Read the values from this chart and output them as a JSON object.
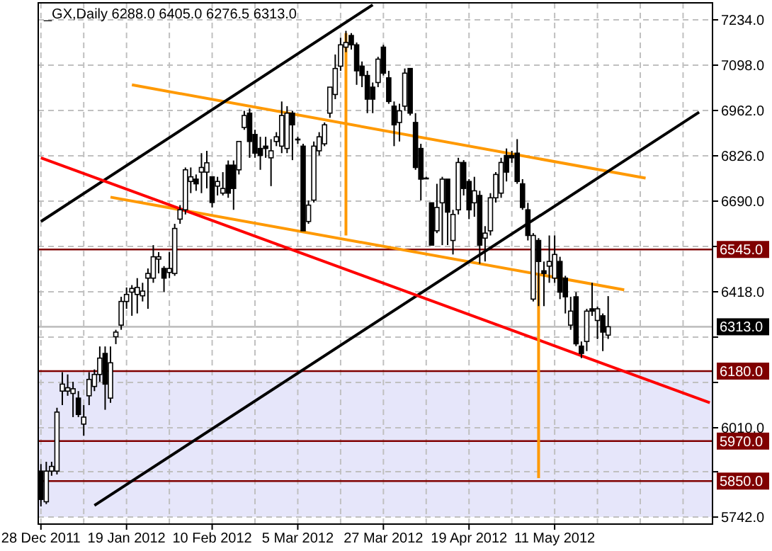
{
  "chart_data": {
    "type": "candlestick",
    "title": "_GX,Daily 6288.0 6405.0 6276.5 6313.0",
    "categories": [
      "28 Dec 2011",
      null,
      null,
      null,
      null,
      null,
      null,
      null,
      null,
      null,
      null,
      null,
      null,
      null,
      null,
      null,
      "19 Jan 2012",
      null,
      null,
      null,
      null,
      null,
      null,
      null,
      null,
      null,
      null,
      null,
      null,
      null,
      null,
      null,
      "10 Feb 2012",
      null,
      null,
      null,
      null,
      null,
      null,
      null,
      null,
      null,
      null,
      null,
      null,
      null,
      null,
      null,
      "5 Mar 2012",
      null,
      null,
      null,
      null,
      null,
      null,
      null,
      null,
      null,
      null,
      null,
      null,
      null,
      null,
      null,
      "27 Mar 2012",
      null,
      null,
      null,
      null,
      null,
      null,
      null,
      null,
      null,
      null,
      null,
      null,
      null,
      null,
      null,
      "19 Apr 2012",
      null,
      null,
      null,
      null,
      null,
      null,
      null,
      null,
      null,
      null,
      null,
      null,
      null,
      null,
      null,
      "11 May 2012",
      null,
      null,
      null,
      null,
      null,
      null,
      null,
      null,
      null,
      null,
      null,
      null,
      null,
      null,
      null,
      null,
      null,
      null,
      null,
      null,
      null,
      null,
      null,
      null,
      null,
      null,
      null,
      null,
      null
    ],
    "ohlc": [
      [
        5880,
        5901,
        5774,
        5795
      ],
      [
        5788,
        5908,
        5781,
        5880
      ],
      [
        5880,
        5908,
        5866,
        5894
      ],
      [
        5880,
        6070,
        5870,
        6057
      ],
      [
        6120,
        6177,
        6078,
        6141
      ],
      [
        6120,
        6170,
        6106,
        6130
      ],
      [
        6113,
        6148,
        6042,
        6127
      ],
      [
        6099,
        6120,
        6042,
        6050
      ],
      [
        6021,
        6078,
        5986,
        6042
      ],
      [
        6106,
        6177,
        6078,
        6155
      ],
      [
        6134,
        6185,
        6120,
        6170
      ],
      [
        6170,
        6254,
        6148,
        6219
      ],
      [
        6233,
        6254,
        6064,
        6141
      ],
      [
        6099,
        6254,
        6085,
        6205
      ],
      [
        6283,
        6304,
        6261,
        6297
      ],
      [
        6318,
        6403,
        6304,
        6389
      ],
      [
        6389,
        6431,
        6367,
        6410
      ],
      [
        6417,
        6438,
        6346,
        6428
      ],
      [
        6410,
        6459,
        6353,
        6431
      ],
      [
        6406,
        6445,
        6389,
        6420
      ],
      [
        6459,
        6488,
        6367,
        6473
      ],
      [
        6459,
        6558,
        6445,
        6523
      ],
      [
        6516,
        6537,
        6473,
        6523
      ],
      [
        6488,
        6495,
        6417,
        6459
      ],
      [
        6476,
        6537,
        6459,
        6488
      ],
      [
        6473,
        6622,
        6466,
        6608
      ],
      [
        6636,
        6678,
        6622,
        6664
      ],
      [
        6664,
        6791,
        6650,
        6784
      ],
      [
        6749,
        6791,
        6714,
        6763
      ],
      [
        6756,
        6770,
        6721,
        6742
      ],
      [
        6777,
        6834,
        6714,
        6791
      ],
      [
        6777,
        6841,
        6728,
        6805
      ],
      [
        6763,
        6763,
        6671,
        6686
      ],
      [
        6735,
        6763,
        6707,
        6749
      ],
      [
        6714,
        6777,
        6707,
        6728
      ],
      [
        6798,
        6812,
        6700,
        6714
      ],
      [
        6798,
        6812,
        6664,
        6728
      ],
      [
        6784,
        6869,
        6770,
        6869
      ],
      [
        6911,
        6961,
        6904,
        6947
      ],
      [
        6954,
        6968,
        6820,
        6869
      ],
      [
        6890,
        6904,
        6820,
        6834
      ],
      [
        6848,
        6883,
        6784,
        6827
      ],
      [
        6855,
        6883,
        6820,
        6848
      ],
      [
        6820,
        6876,
        6735,
        6841
      ],
      [
        6869,
        6897,
        6855,
        6883
      ],
      [
        6855,
        6989,
        6834,
        6947
      ],
      [
        6848,
        6975,
        6834,
        6954
      ],
      [
        6954,
        6961,
        6813,
        6919
      ],
      [
        6876,
        6883,
        6862,
        6876
      ],
      [
        6855,
        6862,
        6601,
        6601
      ],
      [
        6629,
        6692,
        6622,
        6678
      ],
      [
        6693,
        6869,
        6686,
        6855
      ],
      [
        6841,
        6897,
        6827,
        6883
      ],
      [
        6862,
        6926,
        6855,
        6919
      ],
      [
        6954,
        7032,
        6940,
        7032
      ],
      [
        7010,
        7130,
        6996,
        7088
      ],
      [
        7095,
        7180,
        7081,
        7159
      ],
      [
        7152,
        7201,
        7137,
        7166
      ],
      [
        7187,
        7194,
        7145,
        7159
      ],
      [
        7159,
        7166,
        7039,
        7081
      ],
      [
        7095,
        7109,
        7032,
        7067
      ],
      [
        7067,
        7081,
        6954,
        6996
      ],
      [
        7032,
        7046,
        6954,
        6996
      ],
      [
        7046,
        7123,
        7032,
        7116
      ],
      [
        7152,
        7159,
        7067,
        7074
      ],
      [
        7060,
        7081,
        6982,
        6989
      ],
      [
        6975,
        6989,
        6855,
        6919
      ],
      [
        6926,
        6982,
        6869,
        6961
      ],
      [
        6975,
        7088,
        6961,
        7074
      ],
      [
        7088,
        7088,
        6947,
        6954
      ],
      [
        6926,
        6954,
        6784,
        6791
      ],
      [
        6848,
        6862,
        6692,
        6756
      ],
      [
        6759,
        6763,
        6756,
        6759
      ],
      [
        6685,
        6685,
        6558,
        6558
      ],
      [
        6601,
        6742,
        6594,
        6671
      ],
      [
        6685,
        6763,
        6558,
        6756
      ],
      [
        6756,
        6756,
        6558,
        6657
      ],
      [
        6572,
        6664,
        6530,
        6650
      ],
      [
        6664,
        6820,
        6650,
        6806
      ],
      [
        6806,
        6813,
        6707,
        6728
      ],
      [
        6749,
        6756,
        6636,
        6664
      ],
      [
        6685,
        6763,
        6643,
        6721
      ],
      [
        6707,
        6721,
        6502,
        6558
      ],
      [
        6579,
        6615,
        6509,
        6594
      ],
      [
        6601,
        6714,
        6587,
        6700
      ],
      [
        6700,
        6777,
        6686,
        6770
      ],
      [
        6714,
        6820,
        6700,
        6806
      ],
      [
        6827,
        6848,
        6749,
        6777
      ],
      [
        6827,
        6841,
        6805,
        6820
      ],
      [
        6834,
        6876,
        6742,
        6749
      ],
      [
        6742,
        6756,
        6664,
        6671
      ],
      [
        6664,
        6685,
        6572,
        6587
      ],
      [
        6396,
        6594,
        6389,
        6587
      ],
      [
        6572,
        6579,
        6375,
        6509
      ],
      [
        6481,
        6509,
        6375,
        6473
      ],
      [
        6495,
        6587,
        6445,
        6509
      ],
      [
        6459,
        6587,
        6445,
        6530
      ],
      [
        6509,
        6523,
        6396,
        6417
      ],
      [
        6459,
        6466,
        6353,
        6403
      ],
      [
        6318,
        6403,
        6304,
        6360
      ],
      [
        6403,
        6417,
        6255,
        6262
      ],
      [
        6255,
        6269,
        6219,
        6233
      ],
      [
        6269,
        6367,
        6240,
        6360
      ],
      [
        6367,
        6445,
        6346,
        6360
      ],
      [
        6332,
        6374,
        6276,
        6367
      ],
      [
        6346,
        6353,
        6240,
        6297
      ],
      [
        6288,
        6405,
        6276.5,
        6313
      ],
      null,
      null,
      null,
      null,
      null,
      null,
      null,
      null,
      null,
      null,
      null,
      null,
      null,
      null,
      null,
      null,
      null,
      null,
      null
    ],
    "series": [
      {
        "type": "line",
        "color": "#ff9900",
        "values": [
          null,
          null,
          null,
          null,
          null,
          null,
          null,
          null,
          null,
          null,
          null,
          null,
          null,
          null,
          null,
          null,
          null,
          7039,
          null,
          null,
          null,
          null,
          null,
          null,
          null,
          null,
          null,
          null,
          null,
          null,
          null,
          null,
          null,
          null,
          null,
          null,
          null,
          null,
          null,
          null,
          null,
          null,
          null,
          null,
          null,
          null,
          null,
          null,
          null,
          null,
          null,
          null,
          null,
          null,
          null,
          null,
          null,
          null,
          null,
          null,
          null,
          null,
          null,
          null,
          null,
          null,
          null,
          null,
          null,
          null,
          null,
          null,
          null,
          null,
          null,
          null,
          null,
          null,
          null,
          null,
          null,
          null,
          null,
          null,
          null,
          null,
          null,
          null,
          null,
          null,
          null,
          null,
          null,
          null,
          null,
          null,
          null,
          null,
          null,
          null,
          null,
          null,
          null,
          null,
          null,
          null,
          null,
          null,
          null,
          null,
          null,
          null,
          null,
          6759,
          null,
          null,
          null,
          null,
          null,
          null,
          null,
          null,
          null,
          null,
          null,
          null
        ]
      },
      {
        "type": "line",
        "color": "#ff9900",
        "values": [
          null,
          null,
          null,
          null,
          null,
          null,
          null,
          null,
          null,
          null,
          null,
          null,
          null,
          6702,
          null,
          null,
          null,
          null,
          null,
          null,
          null,
          null,
          null,
          null,
          null,
          null,
          null,
          null,
          null,
          null,
          null,
          null,
          null,
          null,
          null,
          null,
          null,
          null,
          null,
          null,
          null,
          null,
          null,
          null,
          null,
          null,
          null,
          null,
          null,
          null,
          null,
          null,
          null,
          null,
          null,
          null,
          null,
          null,
          null,
          null,
          null,
          null,
          null,
          null,
          null,
          null,
          null,
          null,
          null,
          null,
          null,
          null,
          null,
          null,
          null,
          null,
          null,
          null,
          null,
          null,
          null,
          null,
          null,
          null,
          null,
          null,
          null,
          null,
          null,
          null,
          null,
          null,
          null,
          null,
          null,
          null,
          null,
          null,
          null,
          null,
          null,
          null,
          null,
          null,
          null,
          null,
          null,
          null,
          null,
          6424,
          null,
          null,
          null,
          null,
          null,
          null,
          null,
          null,
          null,
          null,
          null,
          null,
          null,
          null,
          null,
          null
        ]
      },
      {
        "type": "line",
        "color": "#000000",
        "values": [
          6629,
          null,
          null,
          null,
          null,
          null,
          null,
          null,
          null,
          null,
          null,
          null,
          null,
          null,
          null,
          null,
          null,
          null,
          null,
          null,
          null,
          null,
          null,
          null,
          null,
          null,
          null,
          null,
          null,
          null,
          null,
          null,
          null,
          null,
          null,
          null,
          null,
          null,
          null,
          null,
          null,
          null,
          null,
          null,
          null,
          null,
          null,
          null,
          null,
          null,
          null,
          null,
          null,
          null,
          null,
          null,
          null,
          null,
          null,
          null,
          null,
          null,
          7279,
          null,
          null,
          null,
          null,
          null,
          null,
          null,
          null,
          null,
          null,
          null,
          null,
          null,
          null,
          null,
          null,
          null,
          null,
          null,
          null,
          null,
          null,
          null,
          null,
          null,
          null,
          null,
          null,
          null,
          null,
          null,
          null,
          null,
          null,
          null,
          null,
          null,
          null,
          null,
          null,
          null,
          null,
          null,
          null,
          null,
          null,
          null,
          null,
          null,
          null,
          null,
          null,
          null,
          null,
          null,
          null,
          null,
          null,
          null,
          null,
          null,
          null,
          null
        ]
      },
      {
        "type": "line",
        "color": "#000000",
        "values": [
          null,
          null,
          null,
          null,
          null,
          null,
          null,
          null,
          null,
          null,
          5777,
          null,
          null,
          null,
          null,
          null,
          null,
          null,
          null,
          null,
          null,
          null,
          null,
          null,
          null,
          null,
          null,
          null,
          null,
          null,
          null,
          null,
          null,
          null,
          null,
          null,
          null,
          null,
          null,
          null,
          null,
          null,
          null,
          null,
          null,
          null,
          null,
          null,
          null,
          null,
          null,
          null,
          null,
          null,
          null,
          null,
          null,
          null,
          null,
          null,
          null,
          null,
          null,
          null,
          null,
          null,
          null,
          null,
          null,
          null,
          null,
          null,
          null,
          null,
          null,
          null,
          null,
          null,
          null,
          null,
          null,
          null,
          null,
          null,
          null,
          null,
          null,
          null,
          null,
          null,
          null,
          null,
          null,
          null,
          null,
          null,
          null,
          null,
          null,
          null,
          null,
          null,
          null,
          null,
          null,
          null,
          null,
          null,
          null,
          null,
          null,
          null,
          null,
          null,
          null,
          null,
          null,
          null,
          null,
          null,
          null,
          null,
          null,
          6957,
          null,
          null
        ]
      },
      {
        "type": "line",
        "color": "#ff0000",
        "values": [
          6820,
          null,
          null,
          null,
          null,
          null,
          null,
          null,
          null,
          null,
          null,
          null,
          null,
          null,
          null,
          null,
          null,
          null,
          null,
          null,
          null,
          null,
          null,
          null,
          null,
          null,
          null,
          null,
          null,
          null,
          null,
          null,
          null,
          null,
          null,
          null,
          null,
          null,
          null,
          null,
          null,
          null,
          null,
          null,
          null,
          null,
          null,
          null,
          null,
          null,
          null,
          null,
          null,
          null,
          null,
          null,
          null,
          null,
          null,
          null,
          null,
          null,
          null,
          null,
          null,
          null,
          null,
          null,
          null,
          null,
          null,
          null,
          null,
          null,
          null,
          null,
          null,
          null,
          null,
          null,
          null,
          null,
          null,
          null,
          null,
          null,
          null,
          null,
          null,
          null,
          null,
          null,
          null,
          null,
          null,
          null,
          null,
          null,
          null,
          null,
          null,
          null,
          null,
          null,
          null,
          null,
          null,
          null,
          null,
          null,
          null,
          null,
          null,
          null,
          null,
          null,
          null,
          null,
          null,
          null,
          null,
          null,
          null,
          null,
          null,
          6085
        ]
      },
      {
        "type": "bar",
        "color": "#ff9900",
        "values": [
          null,
          null,
          null,
          null,
          null,
          null,
          null,
          null,
          null,
          null,
          null,
          null,
          null,
          null,
          null,
          null,
          null,
          null,
          null,
          null,
          null,
          null,
          null,
          null,
          null,
          null,
          null,
          null,
          null,
          null,
          null,
          null,
          null,
          null,
          null,
          null,
          null,
          null,
          null,
          null,
          null,
          null,
          null,
          null,
          null,
          null,
          null,
          null,
          null,
          null,
          null,
          null,
          null,
          null,
          null,
          null,
          null,
          607,
          null,
          null,
          null,
          null,
          null,
          null,
          null,
          null,
          null,
          null,
          null,
          null,
          null,
          null,
          null,
          null,
          null,
          null,
          null,
          null,
          null,
          null,
          null,
          null,
          null,
          null,
          null,
          null,
          null,
          null,
          null,
          null,
          null,
          null,
          null,
          614,
          null,
          null,
          null,
          null,
          null,
          null,
          null,
          null,
          null,
          null,
          null,
          null,
          null,
          null,
          null,
          null,
          null,
          null,
          null,
          null,
          null,
          null,
          null,
          null,
          null,
          null,
          null,
          null,
          null,
          null,
          null,
          null
        ],
        "base": [
          null,
          null,
          null,
          null,
          null,
          null,
          null,
          null,
          null,
          null,
          null,
          null,
          null,
          null,
          null,
          null,
          null,
          null,
          null,
          null,
          null,
          null,
          null,
          null,
          null,
          null,
          null,
          null,
          null,
          null,
          null,
          null,
          null,
          null,
          null,
          null,
          null,
          null,
          null,
          null,
          null,
          null,
          null,
          null,
          null,
          null,
          null,
          null,
          null,
          null,
          null,
          null,
          null,
          null,
          null,
          null,
          null,
          6587,
          null,
          null,
          null,
          null,
          null,
          null,
          null,
          null,
          null,
          null,
          null,
          null,
          null,
          null,
          null,
          null,
          null,
          null,
          null,
          null,
          null,
          null,
          null,
          null,
          null,
          null,
          null,
          null,
          null,
          null,
          null,
          null,
          null,
          null,
          null,
          5859,
          null,
          null,
          null,
          null,
          null,
          null,
          null,
          null,
          null,
          null,
          null,
          null,
          null,
          null,
          null,
          null,
          null,
          null,
          null,
          null,
          null,
          null,
          null,
          null,
          null,
          null,
          null,
          null,
          null,
          null,
          null,
          null
        ]
      }
    ],
    "ylim": [
      5721,
      7285
    ],
    "yticks": [
      {
        "value": 5742,
        "label": "5742.0"
      },
      {
        "value": 5878,
        "label": null
      },
      {
        "value": 6010,
        "label": "6010.0"
      },
      {
        "value": 6146,
        "label": null
      },
      {
        "value": 6282,
        "label": null
      },
      {
        "value": 6418,
        "label": "6418.0"
      },
      {
        "value": 6554,
        "label": null
      },
      {
        "value": 6690,
        "label": "6690.0"
      },
      {
        "value": 6826,
        "label": "6826.0"
      },
      {
        "value": 6962,
        "label": "6962.0"
      },
      {
        "value": 7098,
        "label": "7098.0"
      },
      {
        "value": 7234,
        "label": "7234.0"
      }
    ],
    "grid": true,
    "bands": [
      {
        "axis": "y",
        "from": 5742,
        "to": 6180,
        "color": "#e6e6fa"
      }
    ],
    "ref_lines": [
      {
        "axis": "y",
        "value": 6545,
        "label": "6545.0",
        "color": "#800000"
      },
      {
        "axis": "y",
        "value": 6180,
        "label": "6180.0",
        "color": "#800000"
      },
      {
        "axis": "y",
        "value": 5970,
        "label": "5970.0",
        "color": "#800000"
      },
      {
        "axis": "y",
        "value": 5850,
        "label": "5850.0",
        "color": "#800000"
      },
      {
        "axis": "y",
        "value": 6313,
        "label": "6313.0",
        "color": "#c0c0c0"
      }
    ]
  }
}
